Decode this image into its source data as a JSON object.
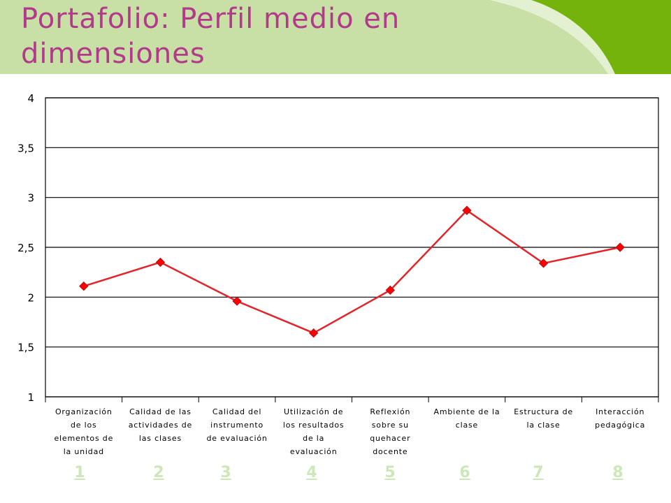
{
  "page": {
    "title": "Portafolio: Perfil medio en dimensiones"
  },
  "colors": {
    "header_background": "#c8dfa5",
    "header_accent": "#73b30b",
    "title": "#b23a8a",
    "series_line": "#e3242b",
    "series_marker": "#ff0000",
    "link": "#cce7b8"
  },
  "chart_data": {
    "type": "line",
    "title": "",
    "xlabel": "",
    "ylabel": "",
    "categories": [
      "Organización de los elementos de la unidad",
      "Calidad de las actividades de las clases",
      "Calidad del instrumento de evaluación",
      "Utilización de los resultados de la evaluación",
      "Reflexión sobre su quehacer docente",
      "Ambiente de la clase",
      "Estructura de la clase",
      "Interacción pedagógica"
    ],
    "category_lines": [
      [
        "Organización",
        "de los",
        "elementos de",
        "la unidad"
      ],
      [
        "Calidad de las",
        "actividades de",
        "las clases"
      ],
      [
        "Calidad del",
        "instrumento",
        "de evaluación"
      ],
      [
        "Utilización de",
        "los resultados",
        "de la",
        "evaluación"
      ],
      [
        "Reflexión",
        "sobre su",
        "quehacer",
        "docente"
      ],
      [
        "Ambiente de la",
        "clase"
      ],
      [
        "Estructura de",
        "la clase"
      ],
      [
        "Interacción",
        "pedagógica"
      ]
    ],
    "series": [
      {
        "values": [
          2.11,
          2.35,
          1.96,
          1.64,
          2.07,
          2.87,
          2.34,
          2.5
        ]
      }
    ],
    "y_ticks": [
      "1",
      "1,5",
      "2",
      "2,5",
      "3",
      "3,5",
      "4"
    ],
    "ylim": [
      1,
      4
    ],
    "grid": "horizontal",
    "legend": "none",
    "marker": "diamond"
  },
  "slide_links": [
    "1",
    "2",
    "3",
    "4",
    "5",
    "6",
    "7",
    "8"
  ]
}
